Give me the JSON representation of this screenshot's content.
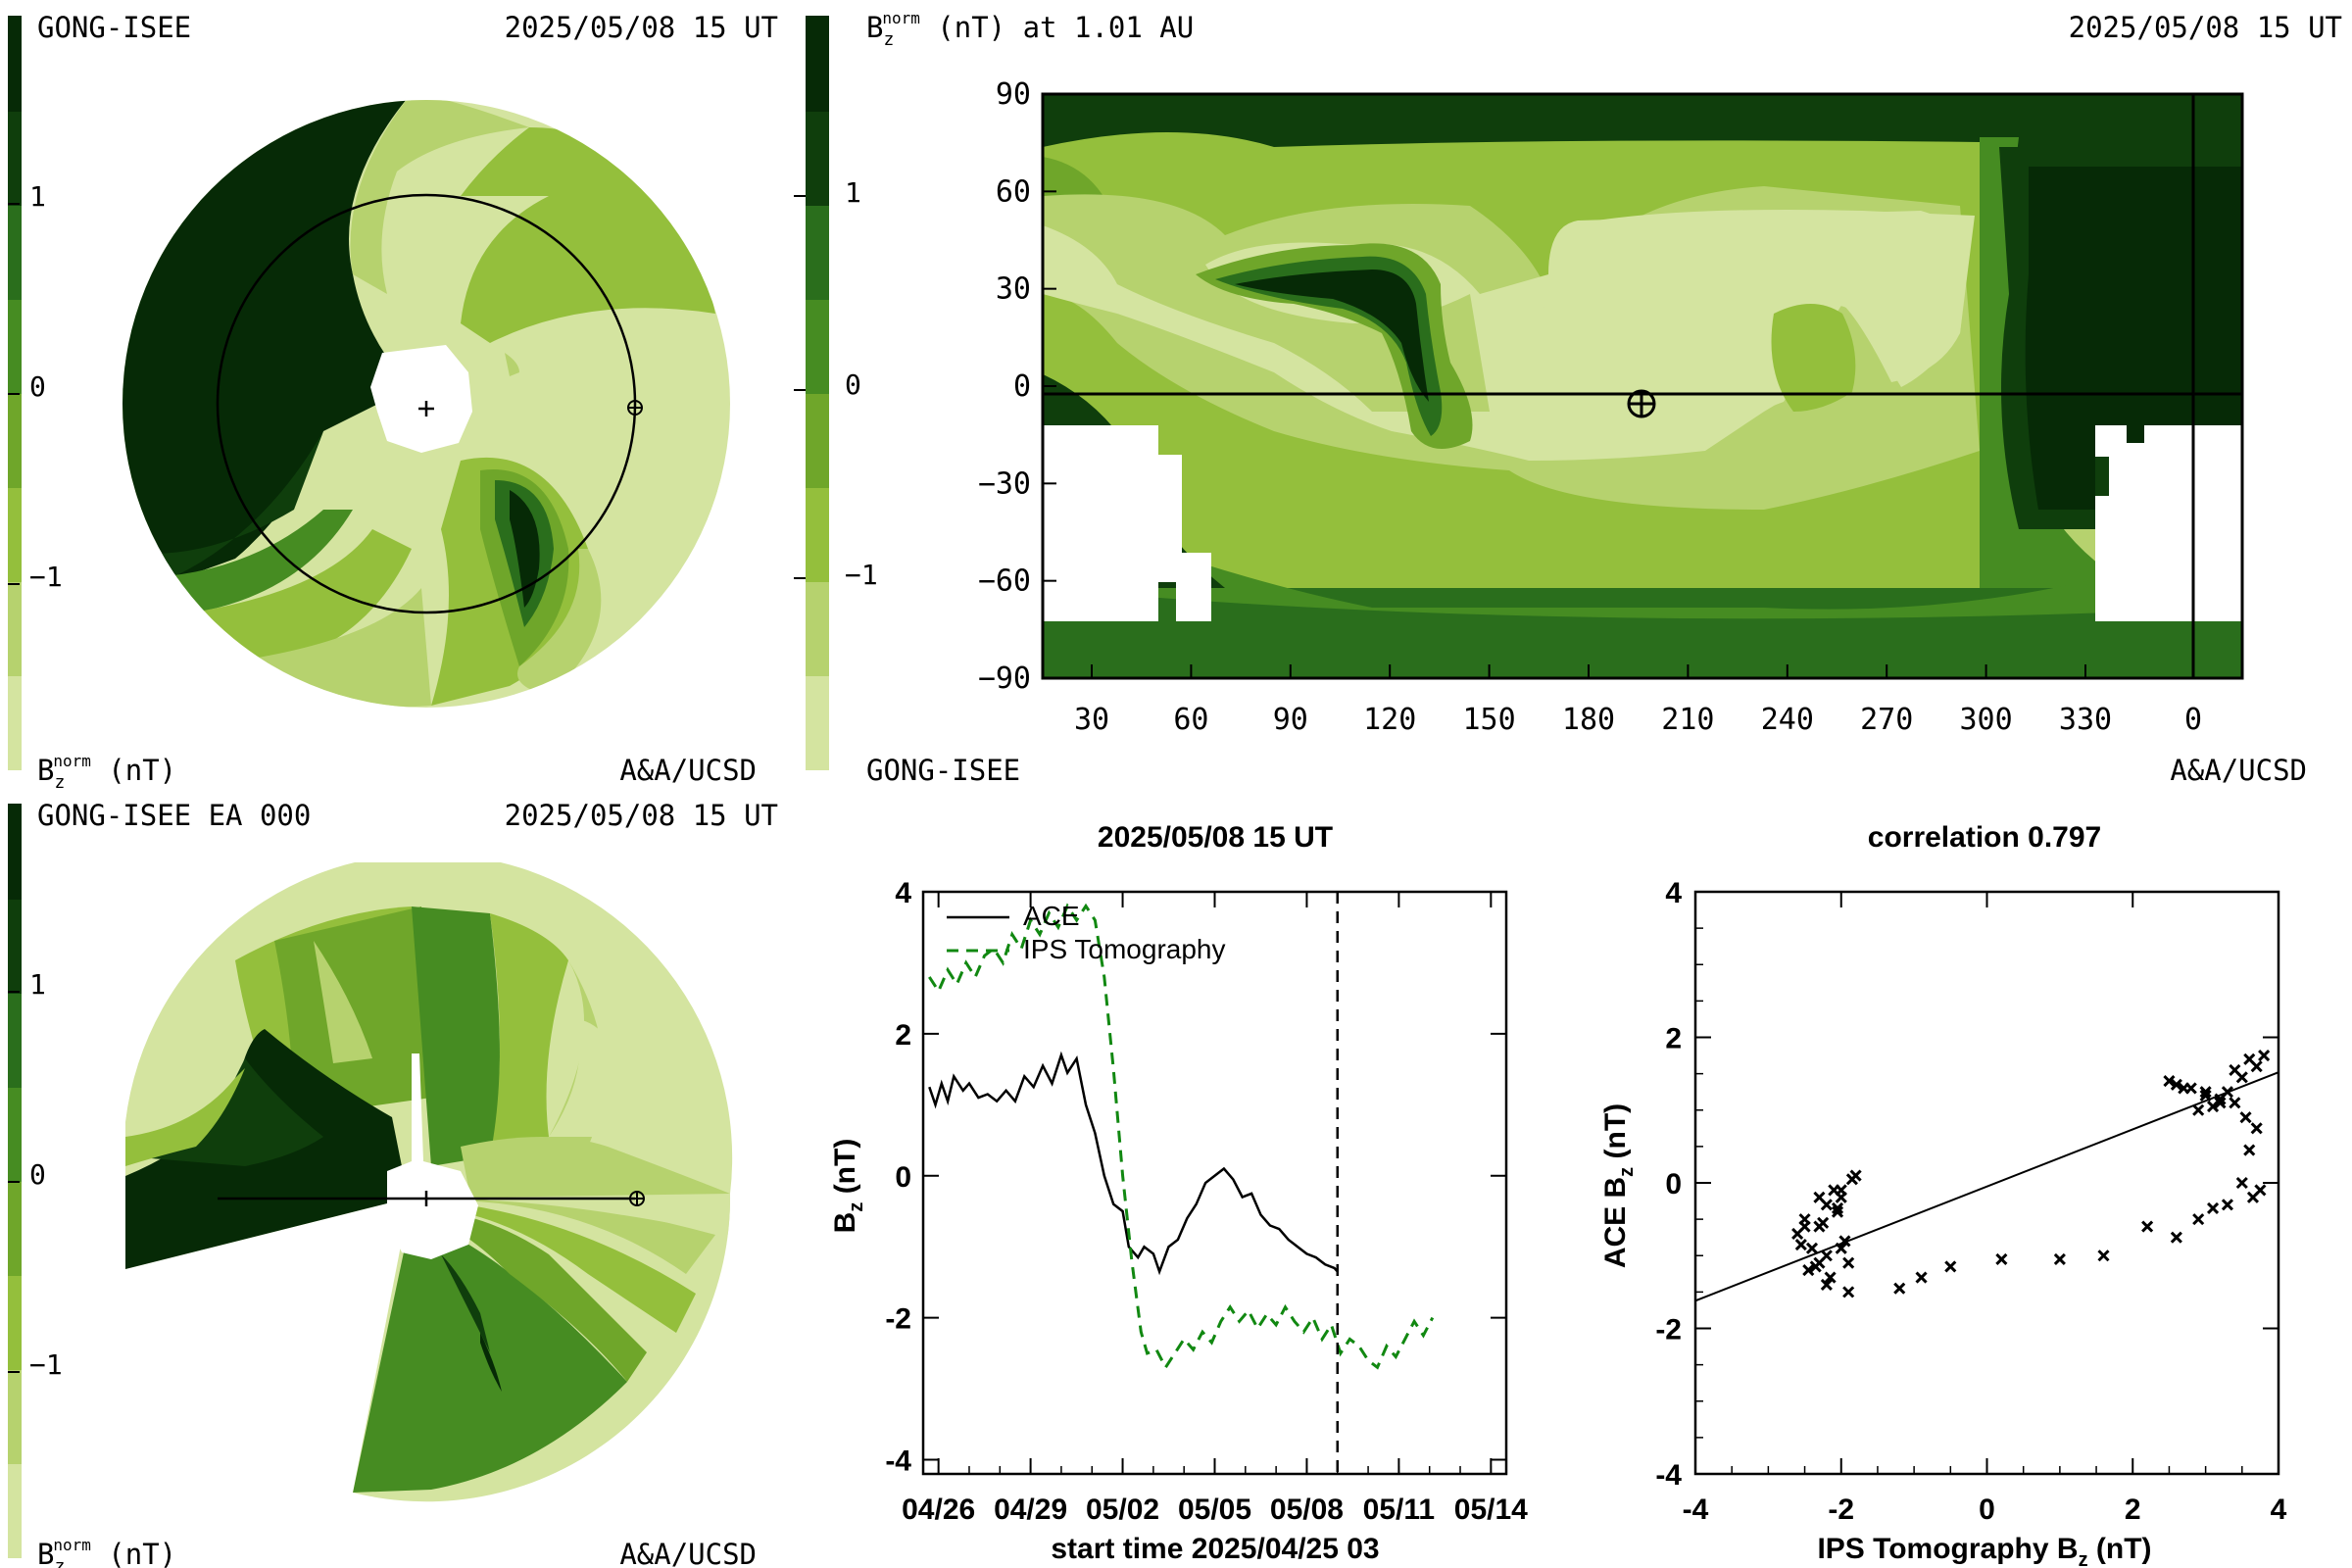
{
  "colors": {
    "level_1": "#d4e4a0",
    "level_2": "#b6d26e",
    "level_3": "#94bf3c",
    "level_4": "#6fa62a",
    "level_5": "#468c22",
    "level_6": "#2a6e1c",
    "level_7": "#0f3e0c",
    "level_8": "#062a06",
    "ips_line": "#118811",
    "ace_line": "#000000"
  },
  "top_left": {
    "source": "GONG-ISEE",
    "date": "2025/05/08 15 UT",
    "legend_label": "B",
    "legend_sub": "z",
    "legend_sup": "norm",
    "legend_unit": " (nT)",
    "credit": "A&A/UCSD",
    "colorbar_ticks": [
      "1",
      "0",
      "−1"
    ]
  },
  "top_right": {
    "title_label": "B",
    "title_sub": "z",
    "title_sup": "norm",
    "title_rest": " (nT) at 1.01 AU",
    "date": "2025/05/08 15 UT",
    "source": "GONG-ISEE",
    "credit": "A&A/UCSD",
    "colorbar_ticks": [
      "1",
      "0",
      "−1"
    ],
    "chart_data": {
      "type": "heatmap",
      "y_ticks": [
        "90",
        "60",
        "30",
        "0",
        "−30",
        "−60",
        "−90"
      ],
      "x_ticks": [
        "30",
        "60",
        "90",
        "120",
        "150",
        "180",
        "210",
        "240",
        "270",
        "300",
        "330",
        "0"
      ],
      "ylim": [
        -90,
        90
      ],
      "earth_longitude": 195,
      "earth_latitude": -3
    }
  },
  "bottom_left": {
    "source": "GONG-ISEE EA 000",
    "date": "2025/05/08 15 UT",
    "legend_label": "B",
    "legend_sub": "z",
    "legend_sup": "norm",
    "legend_unit": " (nT)",
    "credit": "A&A/UCSD",
    "colorbar_ticks": [
      "1",
      "0",
      "−1"
    ]
  },
  "timeseries": {
    "title": "2025/05/08 15 UT",
    "ylabel": "B",
    "ylabel_sub": "z",
    "ylabel_rest": " (nT)",
    "xlabel": "start time 2025/04/25 03",
    "legend_ace": "ACE",
    "legend_ips": "IPS Tomography",
    "chart_data": {
      "type": "line",
      "x_ticks": [
        "04/26",
        "04/29",
        "05/02",
        "05/05",
        "05/08",
        "05/11",
        "05/14"
      ],
      "y_ticks": [
        "4",
        "2",
        "0",
        "-2",
        "-4"
      ],
      "xlim_days": [
        0.5,
        19.5
      ],
      "ylim": [
        -4.2,
        4
      ],
      "now_marker_day": 14.0,
      "series": [
        {
          "name": "ACE",
          "x_day": [
            0.7,
            0.9,
            1.1,
            1.3,
            1.5,
            1.8,
            2.0,
            2.3,
            2.6,
            2.9,
            3.2,
            3.5,
            3.8,
            4.1,
            4.4,
            4.7,
            5.0,
            5.2,
            5.5,
            5.8,
            6.1,
            6.4,
            6.7,
            7.0,
            7.2,
            7.5,
            7.7,
            8.0,
            8.2,
            8.5,
            8.8,
            9.1,
            9.4,
            9.7,
            10.0,
            10.3,
            10.6,
            10.9,
            11.2,
            11.5,
            11.8,
            12.1,
            12.4,
            12.7,
            13.0,
            13.3,
            13.6,
            13.9,
            14.0
          ],
          "values": [
            1.25,
            1.0,
            1.3,
            1.05,
            1.4,
            1.2,
            1.3,
            1.1,
            1.15,
            1.05,
            1.2,
            1.05,
            1.4,
            1.25,
            1.55,
            1.3,
            1.7,
            1.45,
            1.65,
            1.0,
            0.6,
            0.0,
            -0.4,
            -0.5,
            -1.0,
            -1.15,
            -1.0,
            -1.1,
            -1.35,
            -1.0,
            -0.9,
            -0.6,
            -0.4,
            -0.1,
            0.0,
            0.1,
            -0.05,
            -0.3,
            -0.25,
            -0.55,
            -0.7,
            -0.75,
            -0.9,
            -1.0,
            -1.1,
            -1.15,
            -1.25,
            -1.3,
            -1.35
          ]
        },
        {
          "name": "IPS Tomography",
          "x_day": [
            0.7,
            1.0,
            1.3,
            1.6,
            1.9,
            2.2,
            2.5,
            2.8,
            3.1,
            3.4,
            3.7,
            4.0,
            4.3,
            4.6,
            4.9,
            5.2,
            5.5,
            5.8,
            6.1,
            6.4,
            6.7,
            7.0,
            7.3,
            7.6,
            7.8,
            8.1,
            8.4,
            8.7,
            9.0,
            9.3,
            9.6,
            9.9,
            10.2,
            10.5,
            10.8,
            11.1,
            11.4,
            11.7,
            12.0,
            12.3,
            12.6,
            12.9,
            13.2,
            13.5,
            13.8,
            14.1,
            14.4,
            14.7,
            15.0,
            15.3,
            15.6,
            15.9,
            16.2,
            16.5,
            16.8,
            17.1
          ],
          "values": [
            2.8,
            2.6,
            2.9,
            2.7,
            3.0,
            2.8,
            3.1,
            3.2,
            3.0,
            3.4,
            3.2,
            3.6,
            3.4,
            3.7,
            3.5,
            3.8,
            3.6,
            3.8,
            3.6,
            2.8,
            1.5,
            0.0,
            -1.2,
            -2.2,
            -2.5,
            -2.45,
            -2.7,
            -2.5,
            -2.3,
            -2.45,
            -2.2,
            -2.35,
            -2.05,
            -1.85,
            -2.05,
            -1.9,
            -2.15,
            -1.95,
            -2.1,
            -1.85,
            -2.05,
            -2.2,
            -2.0,
            -2.3,
            -2.1,
            -2.5,
            -2.3,
            -2.4,
            -2.6,
            -2.7,
            -2.4,
            -2.55,
            -2.3,
            -2.05,
            -2.25,
            -2.0
          ]
        }
      ]
    }
  },
  "scatter": {
    "title": "correlation 0.797",
    "ylabel": "ACE B",
    "ylabel_sub": "z",
    "ylabel_rest": " (nT)",
    "xlabel": "IPS Tomography B",
    "xlabel_sub": "z",
    "xlabel_rest": " (nT)",
    "chart_data": {
      "type": "scatter",
      "xlim": [
        -4,
        4
      ],
      "ylim": [
        -4,
        4
      ],
      "x_ticks": [
        "-4",
        "-2",
        "0",
        "2",
        "4"
      ],
      "y_ticks": [
        "4",
        "2",
        "0",
        "-2",
        "-4"
      ],
      "fit_line": {
        "x": [
          -4,
          4
        ],
        "y": [
          -1.62,
          1.52
        ]
      },
      "points": {
        "x": [
          -2.6,
          -2.4,
          -2.3,
          -2.5,
          -2.2,
          -2.0,
          -1.8,
          -2.1,
          -2.3,
          -2.45,
          -2.2,
          -1.95,
          -2.05,
          -2.3,
          -2.5,
          -2.0,
          -1.9,
          -2.15,
          -2.35,
          -2.55,
          -2.25,
          -2.05,
          -1.85,
          -2.0,
          -2.2,
          -1.9,
          -1.2,
          -0.9,
          -0.5,
          0.2,
          1.0,
          1.6,
          2.2,
          2.6,
          2.9,
          3.1,
          3.3,
          3.5,
          3.6,
          3.7,
          3.4,
          3.2,
          3.0,
          2.8,
          2.6,
          2.9,
          3.1,
          3.3,
          3.5,
          3.7,
          3.8,
          3.6,
          3.4,
          3.0,
          2.7,
          2.5,
          3.2,
          3.55,
          3.75,
          3.65
        ],
        "y": [
          -0.7,
          -0.9,
          -1.1,
          -0.5,
          -0.3,
          -0.2,
          0.1,
          -0.1,
          -0.6,
          -1.2,
          -1.0,
          -0.8,
          -0.4,
          -0.2,
          -0.6,
          -0.9,
          -1.1,
          -1.3,
          -1.15,
          -0.85,
          -0.55,
          -0.35,
          0.05,
          -0.1,
          -1.4,
          -1.5,
          -1.45,
          -1.3,
          -1.15,
          -1.05,
          -1.05,
          -1.0,
          -0.6,
          -0.75,
          -0.5,
          -0.35,
          -0.3,
          0.0,
          0.45,
          0.75,
          1.1,
          1.15,
          1.2,
          1.3,
          1.35,
          1.0,
          1.05,
          1.25,
          1.45,
          1.6,
          1.75,
          1.7,
          1.55,
          1.25,
          1.3,
          1.4,
          1.1,
          0.9,
          -0.1,
          -0.2
        ]
      }
    }
  }
}
